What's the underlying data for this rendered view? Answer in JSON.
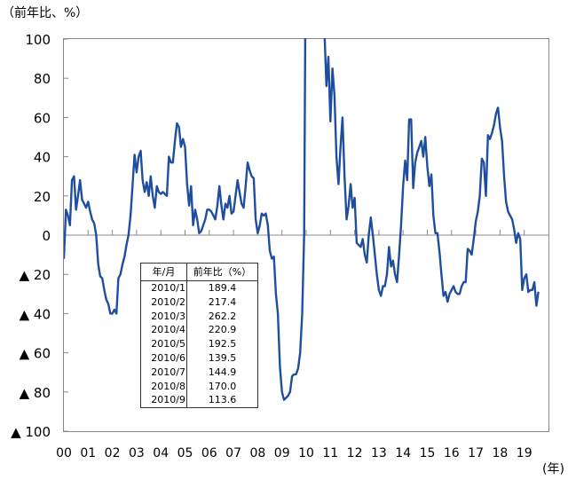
{
  "chart_data": {
    "type": "line",
    "ylabel": "（前年比、%）",
    "xunit": "(年)",
    "ylim": [
      -100,
      100
    ],
    "y_ticks": [
      100,
      80,
      60,
      40,
      20,
      0,
      -20,
      -40,
      -60,
      -80,
      -100
    ],
    "y_tick_labels": [
      "100",
      "80",
      "60",
      "40",
      "20",
      "0",
      "▲ 20",
      "▲ 40",
      "▲ 60",
      "▲ 80",
      "▲ 100"
    ],
    "x_tick_labels": [
      "00",
      "01",
      "02",
      "03",
      "04",
      "05",
      "06",
      "07",
      "08",
      "09",
      "10",
      "11",
      "12",
      "13",
      "14",
      "15",
      "16",
      "17",
      "18",
      "19"
    ],
    "grid": false,
    "series_color": "#1f4e9e",
    "series": [
      {
        "monthly_by_year": [
          {
            "year": 2000,
            "values": [
              -12,
              13,
              10,
              5,
              28,
              30,
              13,
              20,
              28,
              18,
              16,
              14
            ]
          },
          {
            "year": 2001,
            "values": [
              17,
              12,
              8,
              6,
              0,
              -15,
              -21,
              -22,
              -28,
              -33,
              -35,
              -40
            ]
          },
          {
            "year": 2002,
            "values": [
              -40,
              -38,
              -40,
              -22,
              -20,
              -15,
              -11,
              -5,
              0,
              10,
              25,
              41
            ]
          },
          {
            "year": 2003,
            "values": [
              32,
              40,
              43,
              28,
              22,
              27,
              20,
              30,
              20,
              14,
              25,
              22
            ]
          },
          {
            "year": 2004,
            "values": [
              21,
              22,
              21,
              20,
              40,
              37,
              37,
              48,
              57,
              55,
              45,
              49
            ]
          },
          {
            "year": 2005,
            "values": [
              45,
              26,
              15,
              25,
              5,
              13,
              8,
              1,
              2,
              5,
              8,
              13
            ]
          },
          {
            "year": 2006,
            "values": [
              13,
              12,
              10,
              8,
              15,
              25,
              15,
              8,
              16,
              14,
              20,
              11
            ]
          },
          {
            "year": 2007,
            "values": [
              12,
              20,
              28,
              22,
              16,
              14,
              25,
              37,
              33,
              30,
              29,
              8
            ]
          },
          {
            "year": 2008,
            "values": [
              1,
              5,
              11,
              10,
              11,
              5,
              -8,
              -12,
              -11,
              -30,
              -40,
              -67
            ]
          },
          {
            "year": 2009,
            "values": [
              -80,
              -84,
              -83,
              -82,
              -80,
              -72,
              -71,
              -71,
              -68,
              -60,
              -40,
              0
            ]
          },
          {
            "year": 2010,
            "values": [
              189.4,
              217.4,
              262.2,
              220.9,
              192.5,
              139.5,
              144.9,
              170.0,
              113.6,
              105,
              76,
              91
            ]
          },
          {
            "year": 2011,
            "values": [
              58,
              85,
              71,
              40,
              26,
              45,
              60,
              30,
              8,
              15,
              26,
              14
            ]
          },
          {
            "year": 2012,
            "values": [
              19,
              -4,
              -5,
              -6,
              -2,
              -10,
              -14,
              0,
              9,
              0,
              -10,
              -20
            ]
          },
          {
            "year": 2013,
            "values": [
              -28,
              -31,
              -26,
              -26,
              -20,
              -6,
              -16,
              -13,
              -20,
              -24,
              -10,
              5
            ]
          },
          {
            "year": 2014,
            "values": [
              25,
              38,
              28,
              59,
              59,
              24,
              37,
              42,
              45,
              48,
              40,
              50
            ]
          },
          {
            "year": 2015,
            "values": [
              35,
              25,
              31,
              10,
              1,
              1,
              -8,
              -20,
              -31,
              -29,
              -34,
              -30
            ]
          },
          {
            "year": 2016,
            "values": [
              -28,
              -26,
              -29,
              -30,
              -30,
              -26,
              -24,
              -24,
              -7,
              -8,
              -10,
              -2
            ]
          },
          {
            "year": 2017,
            "values": [
              7,
              12,
              20,
              39,
              37,
              20,
              51,
              49,
              52,
              56,
              62,
              65
            ]
          },
          {
            "year": 2018,
            "values": [
              55,
              48,
              30,
              17,
              12,
              10,
              8,
              3,
              -4,
              1,
              -2,
              -28
            ]
          },
          {
            "year": 2019,
            "values": [
              -22,
              -20,
              -29,
              -28,
              -28,
              -24,
              -36,
              -29
            ]
          }
        ]
      }
    ],
    "inset_table": {
      "headers": [
        "年/月",
        "前年比（%）"
      ],
      "rows": [
        [
          "2010/1",
          "189.4"
        ],
        [
          "2010/2",
          "217.4"
        ],
        [
          "2010/3",
          "262.2"
        ],
        [
          "2010/4",
          "220.9"
        ],
        [
          "2010/5",
          "192.5"
        ],
        [
          "2010/6",
          "139.5"
        ],
        [
          "2010/7",
          "144.9"
        ],
        [
          "2010/8",
          "170.0"
        ],
        [
          "2010/9",
          "113.6"
        ]
      ]
    }
  }
}
